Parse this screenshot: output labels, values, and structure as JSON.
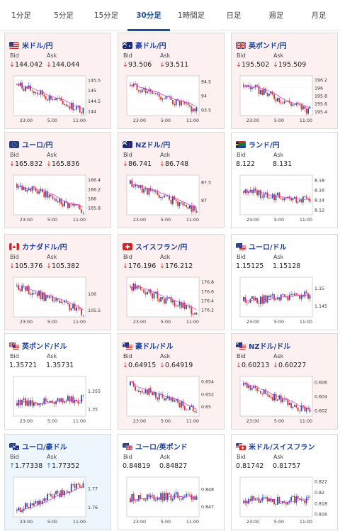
{
  "tabs": [
    "1分足",
    "5分足",
    "15分足",
    "30分足",
    "1時間足",
    "日足",
    "週足",
    "月足"
  ],
  "active_tab": "30分足",
  "labels": {
    "bid": "Bid",
    "ask": "Ask"
  },
  "colors": {
    "candle_up": "#1f4fbf",
    "candle_down": "#e03030",
    "ma_line": "#cc33cc",
    "title": "#1a3fa3"
  },
  "pairs": [
    {
      "name": "米ドル/円",
      "trend": "down",
      "bid": "144.042",
      "ask": "144.044",
      "flag": "us",
      "chart_data": {
        "type": "candlestick",
        "x_ticks": [
          "23:00",
          "5:00",
          "11:00"
        ],
        "y_ticks": [
          "145.5",
          "145",
          "144.5",
          "144"
        ],
        "ylim": [
          143.8,
          145.7
        ]
      }
    },
    {
      "name": "豪ドル/円",
      "trend": "down",
      "bid": "93.506",
      "ask": "93.511",
      "flag": "au",
      "chart_data": {
        "type": "candlestick",
        "x_ticks": [
          "23:00",
          "5:00",
          "11:00"
        ],
        "y_ticks": [
          "94.5",
          "94",
          "93.5"
        ],
        "ylim": [
          93.3,
          94.7
        ]
      }
    },
    {
      "name": "英ポンド/円",
      "trend": "down",
      "bid": "195.502",
      "ask": "195.509",
      "flag": "gb",
      "chart_data": {
        "type": "candlestick",
        "x_ticks": [
          "23:00",
          "5:00",
          "11:00"
        ],
        "y_ticks": [
          "196.2",
          "196",
          "195.8",
          "195.6",
          "195.4"
        ],
        "ylim": [
          195.3,
          196.3
        ]
      }
    },
    {
      "name": "ユーロ/円",
      "trend": "down",
      "bid": "165.832",
      "ask": "165.836",
      "flag": "eu",
      "chart_data": {
        "type": "candlestick",
        "x_ticks": [
          "23:00",
          "5:00",
          "11:00"
        ],
        "y_ticks": [
          "166.4",
          "166.2",
          "166",
          "165.8"
        ],
        "ylim": [
          165.65,
          166.5
        ]
      }
    },
    {
      "name": "NZドル/円",
      "trend": "down",
      "bid": "86.741",
      "ask": "86.748",
      "flag": "nz",
      "chart_data": {
        "type": "candlestick",
        "x_ticks": [
          "23:00",
          "5:00",
          "11:00"
        ],
        "y_ticks": [
          "87.5",
          "87"
        ],
        "ylim": [
          86.6,
          87.7
        ]
      }
    },
    {
      "name": "ランド/円",
      "trend": "neutral",
      "bid": "8.122",
      "ask": "8.131",
      "flag": "za",
      "chart_data": {
        "type": "candlestick",
        "x_ticks": [
          "23:00",
          "5:00",
          "11:00"
        ],
        "y_ticks": [
          "8.18",
          "8.16",
          "8.14",
          "8.12"
        ],
        "ylim": [
          8.11,
          8.19
        ]
      }
    },
    {
      "name": "カナダドル/円",
      "trend": "down",
      "bid": "105.376",
      "ask": "105.382",
      "flag": "ca",
      "chart_data": {
        "type": "candlestick",
        "x_ticks": [
          "23:00",
          "5:00",
          "11:00"
        ],
        "y_ticks": [
          "106",
          "105.5"
        ],
        "ylim": [
          105.3,
          106.5
        ]
      }
    },
    {
      "name": "スイスフラン/円",
      "trend": "down",
      "bid": "176.196",
      "ask": "176.212",
      "flag": "ch",
      "chart_data": {
        "type": "candlestick",
        "x_ticks": [
          "23:00",
          "5:00",
          "11:00"
        ],
        "y_ticks": [
          "176.8",
          "176.6",
          "176.4",
          "176.2"
        ],
        "ylim": [
          176.05,
          176.9
        ]
      }
    },
    {
      "name": "ユーロ/ドル",
      "trend": "neutral",
      "bid": "1.15125",
      "ask": "1.15128",
      "flag": "eu-us",
      "chart_data": {
        "type": "candlestick",
        "x_ticks": [
          "23:00",
          "5:00",
          "11:00"
        ],
        "y_ticks": [
          "1.15",
          "1.145"
        ],
        "ylim": [
          1.142,
          1.153
        ]
      }
    },
    {
      "name": "英ポンド/ドル",
      "trend": "neutral",
      "bid": "1.35721",
      "ask": "1.35731",
      "flag": "gb-us",
      "chart_data": {
        "type": "candlestick",
        "x_ticks": [
          "23:00",
          "5:00",
          "11:00"
        ],
        "y_ticks": [
          "1.355",
          "1.35"
        ],
        "ylim": [
          1.348,
          1.359
        ]
      }
    },
    {
      "name": "豪ドル/ドル",
      "trend": "down",
      "bid": "0.64915",
      "ask": "0.64919",
      "flag": "au-us",
      "chart_data": {
        "type": "candlestick",
        "x_ticks": [
          "23:00",
          "5:00",
          "11:00"
        ],
        "y_ticks": [
          "0.654",
          "0.652",
          "0.65"
        ],
        "ylim": [
          0.6485,
          0.6548
        ]
      }
    },
    {
      "name": "NZドル/ドル",
      "trend": "down",
      "bid": "0.60213",
      "ask": "0.60227",
      "flag": "nz-us",
      "chart_data": {
        "type": "candlestick",
        "x_ticks": [
          "23:00",
          "5:00",
          "11:00"
        ],
        "y_ticks": [
          "0.606",
          "0.604",
          "0.602"
        ],
        "ylim": [
          0.6012,
          0.6068
        ]
      }
    },
    {
      "name": "ユーロ/豪ドル",
      "trend": "up",
      "bid": "1.77338",
      "ask": "1.77352",
      "flag": "eu-au",
      "chart_data": {
        "type": "candlestick",
        "x_ticks": [
          "23:00",
          "5:00",
          "11:00"
        ],
        "y_ticks": [
          "1.77",
          "1.76"
        ],
        "ylim": [
          1.755,
          1.776
        ]
      }
    },
    {
      "name": "ユーロ/英ポンド",
      "trend": "neutral",
      "bid": "0.84819",
      "ask": "0.84827",
      "flag": "eu-gb",
      "chart_data": {
        "type": "candlestick",
        "x_ticks": [
          "23:00",
          "5:00",
          "11:00"
        ],
        "y_ticks": [
          "0.848",
          "0.847"
        ],
        "ylim": [
          0.8464,
          0.8487
        ]
      }
    },
    {
      "name": "米ドル/スイスフラン",
      "trend": "neutral",
      "bid": "0.81742",
      "ask": "0.81757",
      "flag": "us-ch",
      "chart_data": {
        "type": "candlestick",
        "x_ticks": [
          "23:00",
          "5:00",
          "11:00"
        ],
        "y_ticks": [
          "0.822",
          "0.82",
          "0.818",
          "0.816"
        ],
        "ylim": [
          0.8155,
          0.8228
        ]
      }
    }
  ]
}
